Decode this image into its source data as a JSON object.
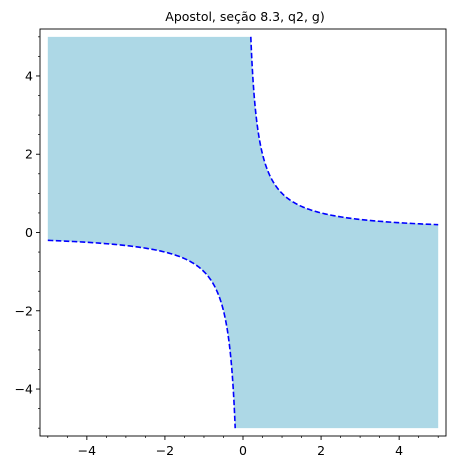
{
  "chart_data": {
    "type": "area",
    "title": "Apostol, seção 8.3, q2, g)",
    "xlabel": "",
    "ylabel": "",
    "xlim": [
      -5.2,
      5.2
    ],
    "ylim": [
      -5.2,
      5.2
    ],
    "grid": false,
    "fill_region": "x*y < 1 within [-5, 5] x [-5, 5]",
    "fill_color": "#add8e6",
    "boundary_curve": "x*y = 1",
    "boundary_color": "#0000ff",
    "boundary_style": "dashed",
    "x_domain": [
      -5,
      5
    ],
    "y_domain": [
      -5,
      5
    ],
    "x_major_ticks": [
      -4,
      -2,
      0,
      2,
      4
    ],
    "x_tick_labels": [
      "−4",
      "−2",
      "0",
      "2",
      "4"
    ],
    "y_major_ticks": [
      -4,
      -2,
      0,
      2,
      4
    ],
    "y_tick_labels": [
      "−4",
      "−2",
      "0",
      "2",
      "4"
    ]
  }
}
